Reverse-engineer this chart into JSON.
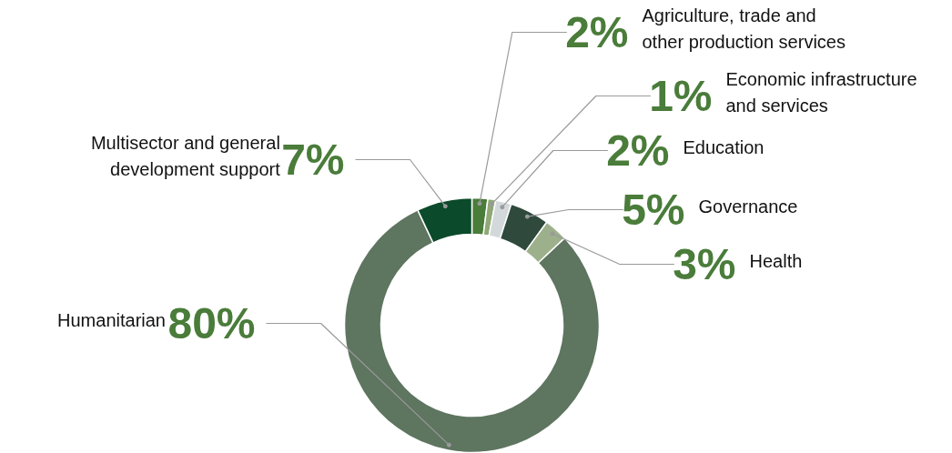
{
  "chart_data": {
    "type": "donut",
    "categories": [
      "Agriculture, trade and\nother production services",
      "Economic infrastructure\nand services",
      "Education",
      "Governance",
      "Health",
      "Humanitarian",
      "Multisector and general\ndevelopment support"
    ],
    "values": [
      2,
      1,
      2,
      5,
      3,
      80,
      7
    ],
    "colors": [
      "#4a7c3a",
      "#8fa876",
      "#d3d8db",
      "#2f4a3c",
      "#9db08c",
      "#5e7560",
      "#0b4a2a"
    ],
    "value_labels": [
      "2%",
      "1%",
      "2%",
      "5%",
      "3%",
      "80%",
      "7%"
    ]
  }
}
